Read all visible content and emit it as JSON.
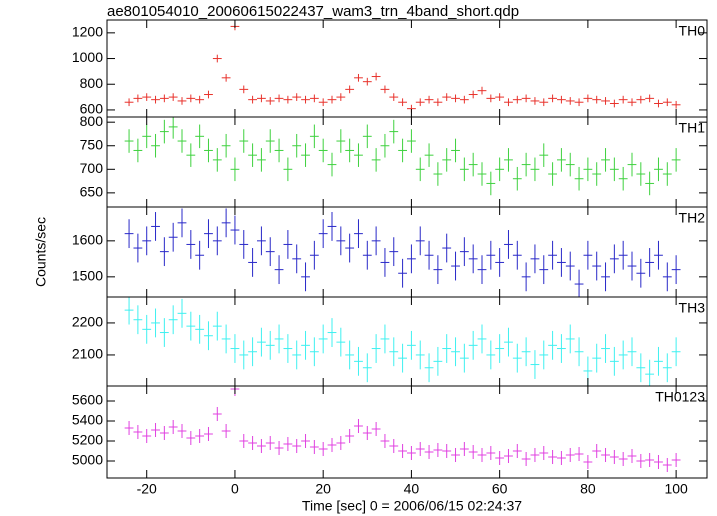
{
  "figure": {
    "title": "ae801054010_20060615022437_wam3_trn_4band_short.qdp",
    "xlabel": "Time [sec] 0 = 2006/06/15 02:24:37",
    "ylabel": "Counts/sec"
  },
  "chart_data": [
    {
      "type": "line",
      "xlim": [
        -29,
        107
      ],
      "ylim": [
        545,
        1300
      ],
      "yticks": [
        600,
        800,
        1000,
        1200
      ],
      "error": 30,
      "x": [
        -24,
        -22,
        -20,
        -18,
        -16,
        -14,
        -12,
        -10,
        -8,
        -6,
        -4,
        -2,
        0,
        2,
        4,
        6,
        8,
        10,
        12,
        14,
        16,
        18,
        20,
        22,
        24,
        26,
        28,
        30,
        32,
        34,
        36,
        38,
        40,
        42,
        44,
        46,
        48,
        50,
        52,
        54,
        56,
        58,
        60,
        62,
        64,
        66,
        68,
        70,
        72,
        74,
        76,
        78,
        80,
        82,
        84,
        86,
        88,
        90,
        92,
        94,
        96,
        98,
        100
      ],
      "series": [
        {
          "name": "TH0",
          "color": "#e8322b",
          "values": [
            660,
            690,
            700,
            680,
            690,
            700,
            670,
            690,
            680,
            720,
            1000,
            850,
            1250,
            760,
            680,
            690,
            670,
            690,
            680,
            700,
            680,
            690,
            660,
            680,
            700,
            760,
            850,
            820,
            860,
            760,
            700,
            660,
            610,
            660,
            680,
            660,
            700,
            690,
            680,
            720,
            750,
            690,
            700,
            660,
            680,
            690,
            670,
            660,
            690,
            680,
            670,
            660,
            690,
            680,
            670,
            650,
            680,
            660,
            680,
            690,
            650,
            660,
            640
          ]
        }
      ]
    },
    {
      "type": "line",
      "xlim": [
        -29,
        107
      ],
      "ylim": [
        620,
        811
      ],
      "yticks": [
        650,
        700,
        750,
        800
      ],
      "error": 25,
      "x": [
        -24,
        -22,
        -20,
        -18,
        -16,
        -14,
        -12,
        -10,
        -8,
        -6,
        -4,
        -2,
        0,
        2,
        4,
        6,
        8,
        10,
        12,
        14,
        16,
        18,
        20,
        22,
        24,
        26,
        28,
        30,
        32,
        34,
        36,
        38,
        40,
        42,
        44,
        46,
        48,
        50,
        52,
        54,
        56,
        58,
        60,
        62,
        64,
        66,
        68,
        70,
        72,
        74,
        76,
        78,
        80,
        82,
        84,
        86,
        88,
        90,
        92,
        94,
        96,
        98,
        100
      ],
      "series": [
        {
          "name": "TH1",
          "color": "#3ed13e",
          "values": [
            760,
            740,
            770,
            750,
            780,
            790,
            760,
            730,
            770,
            740,
            720,
            750,
            700,
            760,
            730,
            720,
            760,
            740,
            700,
            750,
            730,
            770,
            740,
            710,
            760,
            740,
            730,
            770,
            720,
            750,
            780,
            740,
            760,
            700,
            730,
            690,
            720,
            740,
            700,
            710,
            690,
            670,
            700,
            720,
            680,
            710,
            700,
            730,
            690,
            720,
            710,
            680,
            700,
            690,
            720,
            700,
            680,
            710,
            690,
            670,
            700,
            690,
            720
          ]
        }
      ]
    },
    {
      "type": "line",
      "xlim": [
        -29,
        107
      ],
      "ylim": [
        1444,
        1694
      ],
      "yticks": [
        1500,
        1600
      ],
      "error": 40,
      "x": [
        -24,
        -22,
        -20,
        -18,
        -16,
        -14,
        -12,
        -10,
        -8,
        -6,
        -4,
        -2,
        0,
        2,
        4,
        6,
        8,
        10,
        12,
        14,
        16,
        18,
        20,
        22,
        24,
        26,
        28,
        30,
        32,
        34,
        36,
        38,
        40,
        42,
        44,
        46,
        48,
        50,
        52,
        54,
        56,
        58,
        60,
        62,
        64,
        66,
        68,
        70,
        72,
        74,
        76,
        78,
        80,
        82,
        84,
        86,
        88,
        90,
        92,
        94,
        96,
        98,
        100
      ],
      "series": [
        {
          "name": "TH2",
          "color": "#2828c8",
          "values": [
            1620,
            1580,
            1600,
            1640,
            1570,
            1610,
            1650,
            1590,
            1560,
            1620,
            1600,
            1650,
            1630,
            1590,
            1540,
            1600,
            1570,
            1520,
            1590,
            1550,
            1500,
            1560,
            1620,
            1640,
            1600,
            1580,
            1620,
            1560,
            1600,
            1540,
            1570,
            1510,
            1550,
            1600,
            1560,
            1520,
            1580,
            1530,
            1570,
            1550,
            1520,
            1560,
            1540,
            1590,
            1560,
            1500,
            1550,
            1520,
            1560,
            1540,
            1530,
            1480,
            1560,
            1530,
            1500,
            1550,
            1560,
            1530,
            1510,
            1540,
            1560,
            1500,
            1520
          ]
        }
      ]
    },
    {
      "type": "line",
      "xlim": [
        -29,
        107
      ],
      "ylim": [
        2003,
        2281
      ],
      "yticks": [
        2100,
        2200
      ],
      "error": 45,
      "x": [
        -24,
        -22,
        -20,
        -18,
        -16,
        -14,
        -12,
        -10,
        -8,
        -6,
        -4,
        -2,
        0,
        2,
        4,
        6,
        8,
        10,
        12,
        14,
        16,
        18,
        20,
        22,
        24,
        26,
        28,
        30,
        32,
        34,
        36,
        38,
        40,
        42,
        44,
        46,
        48,
        50,
        52,
        54,
        56,
        58,
        60,
        62,
        64,
        66,
        68,
        70,
        72,
        74,
        76,
        78,
        80,
        82,
        84,
        86,
        88,
        90,
        92,
        94,
        96,
        98,
        100
      ],
      "series": [
        {
          "name": "TH3",
          "color": "#3ef0f0",
          "values": [
            2240,
            2210,
            2180,
            2200,
            2170,
            2210,
            2230,
            2190,
            2180,
            2160,
            2190,
            2150,
            2120,
            2100,
            2110,
            2140,
            2130,
            2150,
            2120,
            2100,
            2130,
            2110,
            2150,
            2170,
            2140,
            2100,
            2080,
            2060,
            2120,
            2150,
            2110,
            2090,
            2130,
            2100,
            2060,
            2080,
            2120,
            2110,
            2090,
            2130,
            2150,
            2100,
            2120,
            2140,
            2090,
            2110,
            2070,
            2100,
            2130,
            2120,
            2150,
            2110,
            2050,
            2090,
            2120,
            2080,
            2100,
            2110,
            2060,
            2040,
            2080,
            2060,
            2110
          ]
        }
      ]
    },
    {
      "type": "line",
      "xlim": [
        -29,
        107
      ],
      "ylim": [
        4830,
        5750
      ],
      "yticks": [
        5000,
        5200,
        5400,
        5600
      ],
      "xticks": [
        -20,
        0,
        20,
        40,
        60,
        80,
        100
      ],
      "error": 70,
      "x": [
        -24,
        -22,
        -20,
        -18,
        -16,
        -14,
        -12,
        -10,
        -8,
        -6,
        -4,
        -2,
        0,
        2,
        4,
        6,
        8,
        10,
        12,
        14,
        16,
        18,
        20,
        22,
        24,
        26,
        28,
        30,
        32,
        34,
        36,
        38,
        40,
        42,
        44,
        46,
        48,
        50,
        52,
        54,
        56,
        58,
        60,
        62,
        64,
        66,
        68,
        70,
        72,
        74,
        76,
        78,
        80,
        82,
        84,
        86,
        88,
        90,
        92,
        94,
        96,
        98,
        100
      ],
      "series": [
        {
          "name": "TH0123",
          "color": "#e040e0",
          "values": [
            5330,
            5290,
            5250,
            5310,
            5280,
            5340,
            5300,
            5230,
            5250,
            5270,
            5470,
            5300,
            5720,
            5200,
            5180,
            5150,
            5180,
            5130,
            5170,
            5150,
            5200,
            5140,
            5120,
            5160,
            5180,
            5250,
            5350,
            5280,
            5320,
            5200,
            5150,
            5100,
            5080,
            5120,
            5090,
            5110,
            5100,
            5060,
            5120,
            5090,
            5060,
            5080,
            5030,
            5050,
            5100,
            5020,
            5060,
            5080,
            5040,
            5030,
            5060,
            5070,
            4990,
            5100,
            5060,
            5040,
            5020,
            5050,
            5000,
            5010,
            4990,
            4960,
            5010
          ]
        }
      ]
    }
  ]
}
